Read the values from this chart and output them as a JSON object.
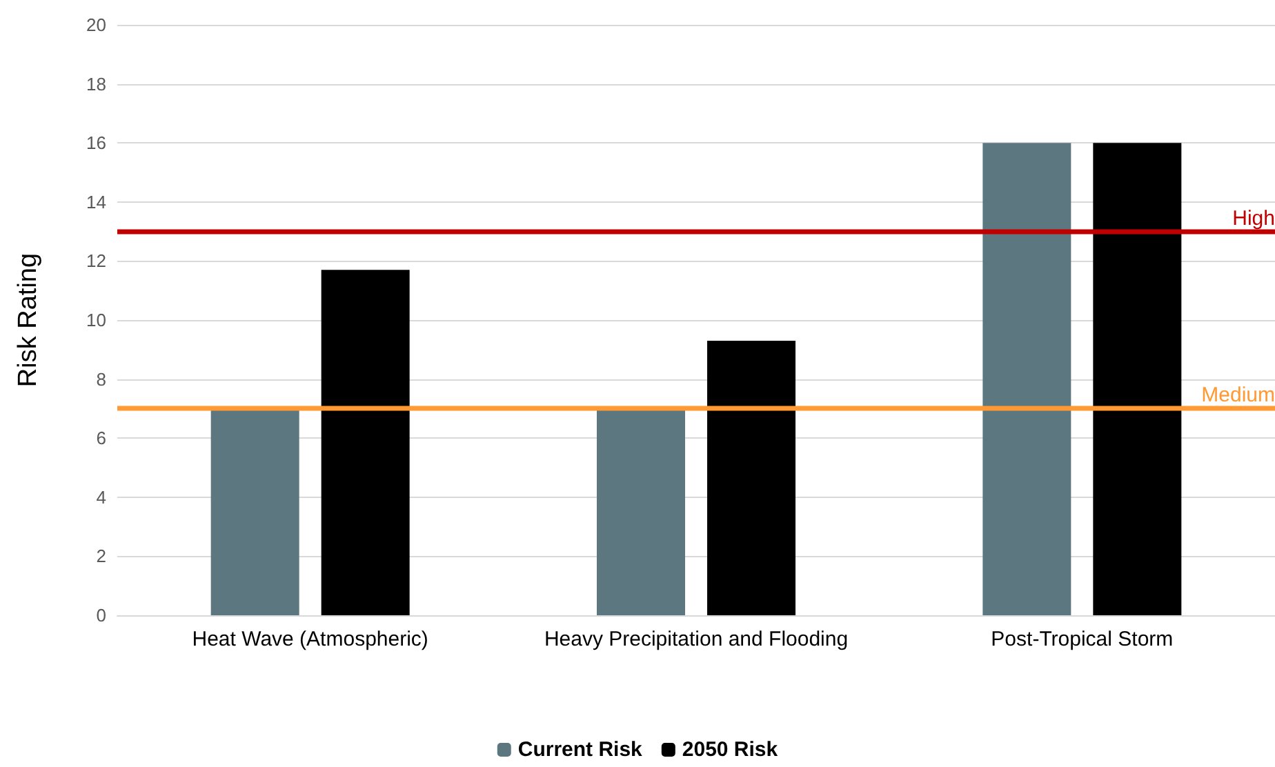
{
  "chart_data": {
    "type": "bar",
    "ylabel": "Risk Rating",
    "categories": [
      "Heat Wave (Atmospheric)",
      "Heavy Precipitation and Flooding",
      "Post-Tropical Storm"
    ],
    "series": [
      {
        "name": "Current Risk",
        "color": "#5d7780",
        "values": [
          7,
          7,
          16
        ]
      },
      {
        "name": "2050 Risk",
        "color": "#000000",
        "values": [
          11.7,
          9.3,
          16
        ]
      }
    ],
    "ylim": [
      0,
      20
    ],
    "yticks": [
      0,
      2,
      4,
      6,
      8,
      10,
      12,
      14,
      16,
      18,
      20
    ],
    "grid": "y",
    "legend": "bottom",
    "ref_lines": [
      {
        "axis": "y",
        "value": 13,
        "label": "High",
        "color": "#c00000"
      },
      {
        "axis": "y",
        "value": 7,
        "label": "Medium",
        "color": "#ff9933"
      }
    ]
  }
}
